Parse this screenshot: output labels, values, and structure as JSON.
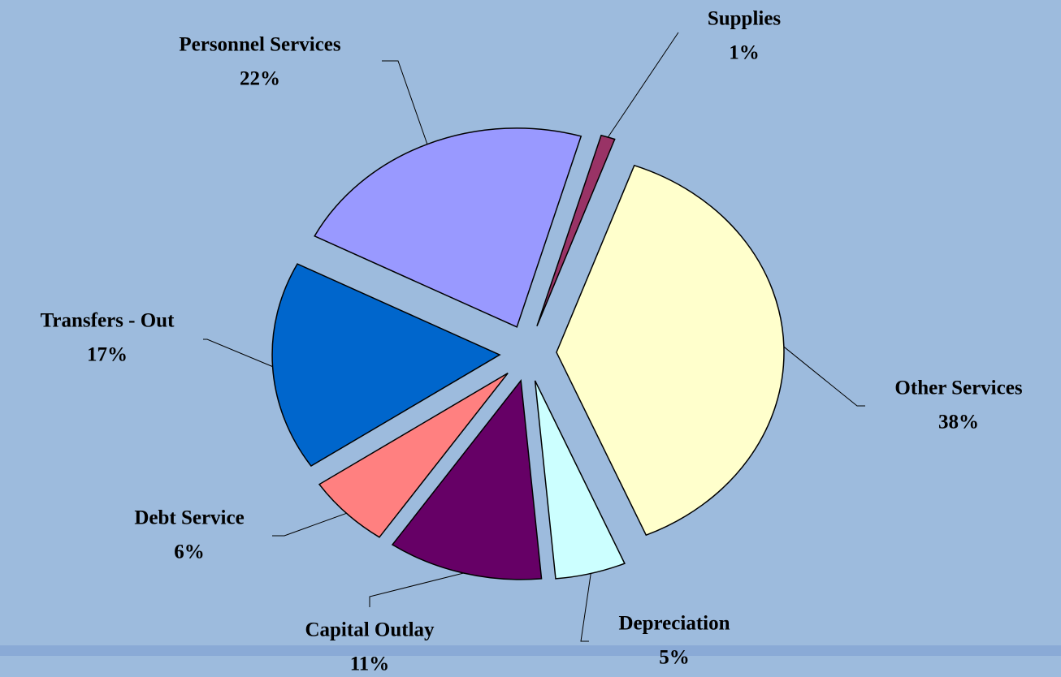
{
  "chart_data": {
    "type": "pie",
    "categories": [
      "Other Services",
      "Depreciation",
      "Capital Outlay",
      "Debt Service",
      "Transfers - Out",
      "Personnel Services",
      "Supplies"
    ],
    "values": [
      38,
      5,
      11,
      6,
      17,
      22,
      1
    ],
    "value_labels": [
      "38%",
      "5%",
      "11%",
      "6%",
      "17%",
      "22%",
      "1%"
    ],
    "colors": [
      "#ffffcc",
      "#ccffff",
      "#660066",
      "#ff8080",
      "#0066cc",
      "#9999ff",
      "#993366"
    ]
  }
}
